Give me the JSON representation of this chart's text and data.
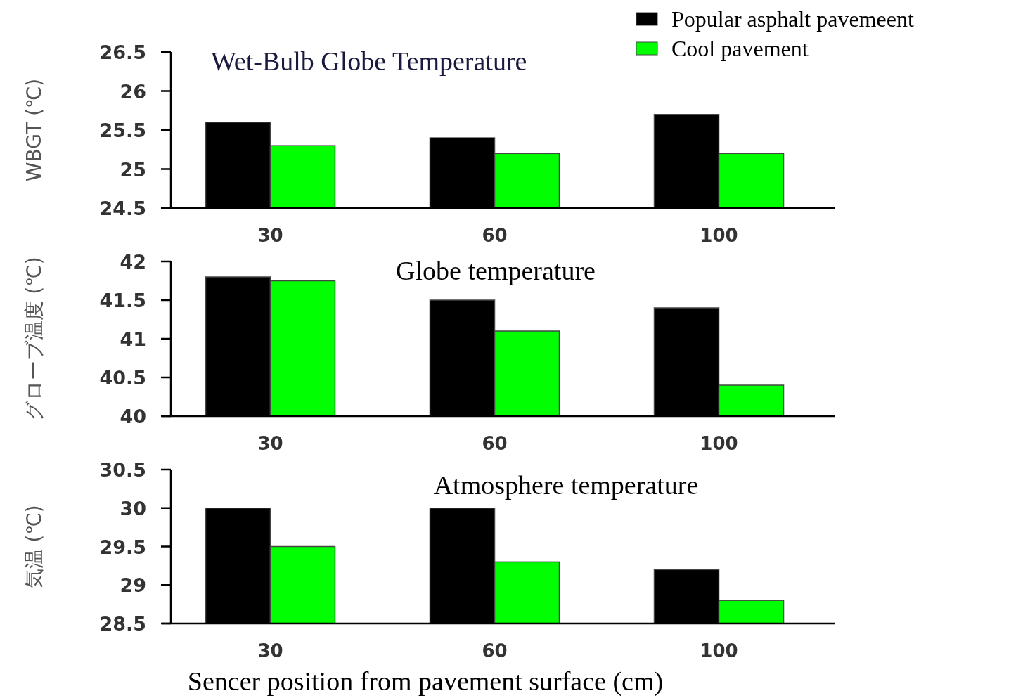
{
  "chart_data": [
    {
      "type": "bar",
      "title": "Wet-Bulb Globe Temperature",
      "ylabel": "WBGT (℃)",
      "categories": [
        "30",
        "60",
        "100"
      ],
      "series": [
        {
          "name": "Popular asphalt pavemeent",
          "color": "#000000",
          "values": [
            25.6,
            25.4,
            25.7
          ]
        },
        {
          "name": "Cool pavement",
          "color": "#00ff00",
          "values": [
            25.3,
            25.2,
            25.2
          ]
        }
      ],
      "ylim": [
        24.5,
        26.5
      ],
      "yticks": [
        24.5,
        25,
        25.5,
        26,
        26.5
      ],
      "legend": "top right"
    },
    {
      "type": "bar",
      "title": "Globe temperature",
      "ylabel": "グローブ温度 (℃)",
      "categories": [
        "30",
        "60",
        "100"
      ],
      "series": [
        {
          "color": "#000000",
          "values": [
            41.8,
            41.5,
            41.4
          ]
        },
        {
          "color": "#00ff00",
          "values": [
            41.75,
            41.1,
            40.4
          ]
        }
      ],
      "ylim": [
        40,
        42
      ],
      "yticks": [
        40,
        40.5,
        41,
        41.5,
        42
      ]
    },
    {
      "type": "bar",
      "title": "Atmosphere temperature",
      "ylabel": "気温 (℃)",
      "xlabel": "Sencer position from pavement  surface (cm)",
      "categories": [
        "30",
        "60",
        "100"
      ],
      "series": [
        {
          "color": "#000000",
          "values": [
            30.0,
            30.0,
            29.2
          ]
        },
        {
          "color": "#00ff00",
          "values": [
            29.5,
            29.3,
            28.8
          ]
        }
      ],
      "ylim": [
        28.5,
        30.5
      ],
      "yticks": [
        28.5,
        29,
        29.5,
        30,
        30.5
      ]
    }
  ]
}
